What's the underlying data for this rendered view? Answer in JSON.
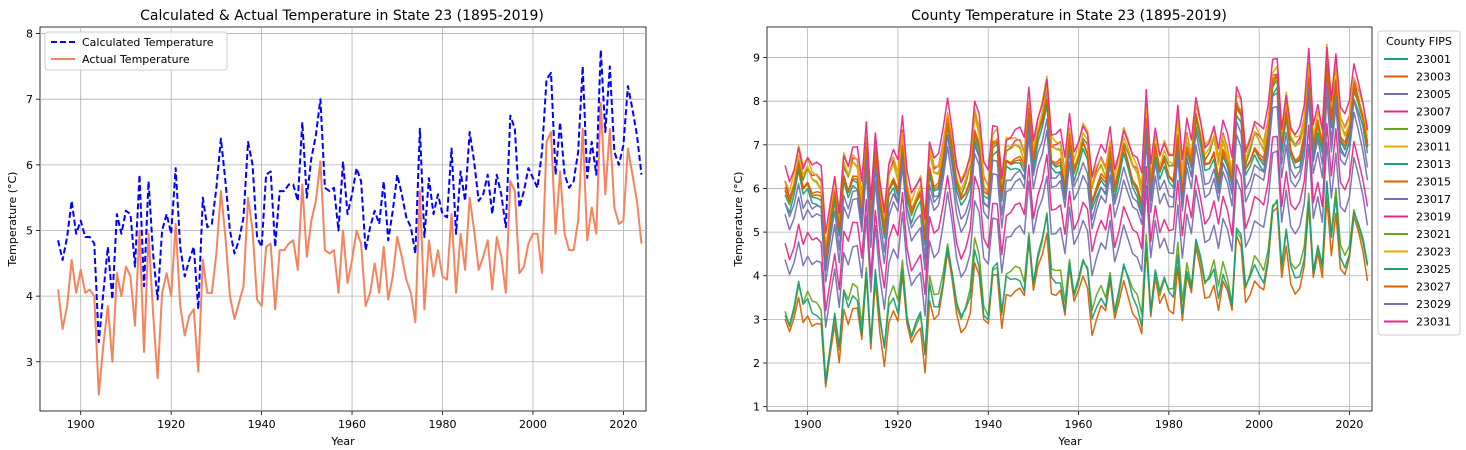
{
  "chart_data": [
    {
      "type": "line",
      "title": "Calculated & Actual Temperature in State 23 (1895-2019)",
      "xlabel": "Year",
      "ylabel": "Temperature (°C)",
      "xlim": [
        1891,
        2025
      ],
      "ylim": [
        2.25,
        8.1
      ],
      "xticks": [
        1900,
        1920,
        1940,
        1960,
        1980,
        2000,
        2020
      ],
      "yticks": [
        3,
        4,
        5,
        6,
        7,
        8
      ],
      "grid": true,
      "legend_position": "top-left",
      "x_start": 1895,
      "series": [
        {
          "name": "Calculated Temperature",
          "color": "#0000ff",
          "style": "dashed",
          "values": [
            4.85,
            4.55,
            4.9,
            5.45,
            4.95,
            5.15,
            4.9,
            4.9,
            4.8,
            3.3,
            4.05,
            4.75,
            3.95,
            5.25,
            4.95,
            5.3,
            5.25,
            4.45,
            5.85,
            4.15,
            5.75,
            4.65,
            3.95,
            5.0,
            5.25,
            4.95,
            5.95,
            4.75,
            4.3,
            4.55,
            4.75,
            3.8,
            5.5,
            5.05,
            5.1,
            5.65,
            6.4,
            5.75,
            5.0,
            4.65,
            4.85,
            5.2,
            6.35,
            6.0,
            4.9,
            4.75,
            5.85,
            5.9,
            4.75,
            5.6,
            5.6,
            5.7,
            5.7,
            5.45,
            6.65,
            5.5,
            6.1,
            6.45,
            7.0,
            5.65,
            5.6,
            5.65,
            5.0,
            6.05,
            5.25,
            5.55,
            5.95,
            5.75,
            4.7,
            5.05,
            5.3,
            5.1,
            5.75,
            4.85,
            5.3,
            5.85,
            5.55,
            5.2,
            5.05,
            4.65,
            6.55,
            4.9,
            5.8,
            5.25,
            5.55,
            5.25,
            5.2,
            6.25,
            4.95,
            5.9,
            5.45,
            6.5,
            6.05,
            5.45,
            5.55,
            5.85,
            5.25,
            5.85,
            5.55,
            5.05,
            6.75,
            6.55,
            5.35,
            5.6,
            5.95,
            5.8,
            5.65,
            6.2,
            7.3,
            7.4,
            5.85,
            6.65,
            5.85,
            5.65,
            5.75,
            6.2,
            7.5,
            5.8,
            6.35,
            5.85,
            7.75,
            6.5,
            7.5,
            6.2,
            6.0,
            6.3,
            7.2,
            6.85,
            6.45,
            5.85
          ]
        },
        {
          "name": "Actual Temperature",
          "color": "#f4845f",
          "style": "solid",
          "values": [
            4.1,
            3.5,
            3.85,
            4.55,
            4.05,
            4.4,
            4.05,
            4.1,
            4.0,
            2.5,
            3.25,
            3.85,
            3.0,
            4.35,
            4.0,
            4.45,
            4.3,
            3.55,
            5.0,
            3.15,
            4.95,
            3.75,
            2.75,
            4.05,
            4.35,
            4.0,
            5.1,
            3.85,
            3.4,
            3.7,
            3.8,
            2.85,
            4.55,
            4.05,
            4.05,
            4.65,
            5.6,
            4.9,
            4.0,
            3.65,
            3.9,
            4.15,
            5.5,
            5.0,
            3.95,
            3.85,
            4.75,
            4.8,
            3.8,
            4.7,
            4.7,
            4.8,
            4.85,
            4.4,
            5.7,
            4.6,
            5.15,
            5.45,
            6.05,
            4.7,
            4.65,
            4.7,
            4.05,
            5.0,
            4.2,
            4.55,
            5.0,
            4.8,
            3.85,
            4.05,
            4.5,
            4.05,
            4.75,
            3.95,
            4.3,
            4.9,
            4.6,
            4.25,
            4.05,
            3.6,
            5.6,
            3.8,
            4.85,
            4.3,
            4.7,
            4.3,
            4.25,
            5.25,
            4.05,
            4.95,
            4.4,
            5.5,
            5.0,
            4.4,
            4.6,
            4.85,
            4.1,
            4.9,
            4.6,
            4.05,
            5.75,
            5.6,
            4.35,
            4.45,
            4.8,
            4.95,
            4.95,
            4.35,
            6.35,
            6.5,
            4.95,
            5.9,
            4.95,
            4.7,
            4.7,
            5.15,
            6.55,
            4.85,
            5.35,
            4.95,
            6.95,
            5.55,
            6.55,
            5.35,
            5.1,
            5.15,
            6.25,
            5.85,
            5.45,
            4.8
          ]
        }
      ]
    },
    {
      "type": "line",
      "title": "County Temperature in State 23 (1895-2019)",
      "xlabel": "Year",
      "ylabel": "Temperature (°C)",
      "xlim": [
        1891,
        2025
      ],
      "ylim": [
        0.9,
        9.7
      ],
      "xticks": [
        1900,
        1920,
        1940,
        1960,
        1980,
        2000,
        2020
      ],
      "yticks": [
        1,
        2,
        3,
        4,
        5,
        6,
        7,
        8,
        9
      ],
      "grid": true,
      "legend_title": "County FIPS",
      "legend_position": "outside-right",
      "x_start": 1895,
      "base_pattern": [
        4.85,
        4.55,
        4.9,
        5.45,
        4.95,
        5.15,
        4.9,
        4.9,
        4.8,
        3.3,
        4.05,
        4.75,
        3.95,
        5.25,
        4.95,
        5.3,
        5.25,
        4.45,
        5.85,
        4.15,
        5.75,
        4.65,
        3.95,
        5.0,
        5.25,
        4.95,
        5.95,
        4.75,
        4.3,
        4.55,
        4.75,
        3.8,
        5.5,
        5.05,
        5.1,
        5.65,
        6.4,
        5.75,
        5.0,
        4.65,
        4.85,
        5.2,
        6.35,
        6.0,
        4.9,
        4.75,
        5.85,
        5.9,
        4.75,
        5.6,
        5.6,
        5.7,
        5.7,
        5.45,
        6.65,
        5.5,
        6.1,
        6.45,
        7.0,
        5.65,
        5.6,
        5.65,
        5.0,
        6.05,
        5.25,
        5.55,
        5.95,
        5.75,
        4.7,
        5.05,
        5.3,
        5.1,
        5.75,
        4.85,
        5.3,
        5.85,
        5.55,
        5.2,
        5.05,
        4.65,
        6.55,
        4.9,
        5.8,
        5.25,
        5.55,
        5.25,
        5.2,
        6.25,
        4.95,
        5.9,
        5.45,
        6.5,
        6.05,
        5.45,
        5.55,
        5.85,
        5.25,
        5.85,
        5.55,
        5.05,
        6.75,
        6.55,
        5.35,
        5.6,
        5.95,
        5.8,
        5.65,
        6.2,
        7.3,
        7.4,
        5.85,
        6.65,
        5.85,
        5.65,
        5.75,
        6.2,
        7.5,
        5.8,
        6.35,
        5.85,
        7.75,
        6.5,
        7.5,
        6.2,
        6.0,
        6.3,
        7.2,
        6.85,
        6.45,
        5.85
      ],
      "series": [
        {
          "name": "23001",
          "color": "#1b9e77",
          "offset": 1.0
        },
        {
          "name": "23003",
          "color": "#d95f02",
          "offset": -1.95
        },
        {
          "name": "23005",
          "color": "#7570b3",
          "offset": 0.45
        },
        {
          "name": "23007",
          "color": "#e7298a",
          "offset": 1.3
        },
        {
          "name": "23009",
          "color": "#66a61e",
          "offset": 1.2
        },
        {
          "name": "23011",
          "color": "#e6ab02",
          "offset": 1.45
        },
        {
          "name": "23013",
          "color": "#1b9e77",
          "offset": 0.85
        },
        {
          "name": "23015",
          "color": "#d95f02",
          "offset": 1.1
        },
        {
          "name": "23017",
          "color": "#7570b3",
          "offset": -0.6
        },
        {
          "name": "23019",
          "color": "#e7298a",
          "offset": -0.15
        },
        {
          "name": "23021",
          "color": "#66a61e",
          "offset": -1.6
        },
        {
          "name": "23023",
          "color": "#e6ab02",
          "offset": 1.25
        },
        {
          "name": "23025",
          "color": "#1b9e77",
          "offset": -1.7
        },
        {
          "name": "23027",
          "color": "#d95f02",
          "offset": 1.05
        },
        {
          "name": "23029",
          "color": "#7570b3",
          "offset": 0.7
        },
        {
          "name": "23031",
          "color": "#e7298a",
          "offset": 1.6
        }
      ]
    }
  ]
}
